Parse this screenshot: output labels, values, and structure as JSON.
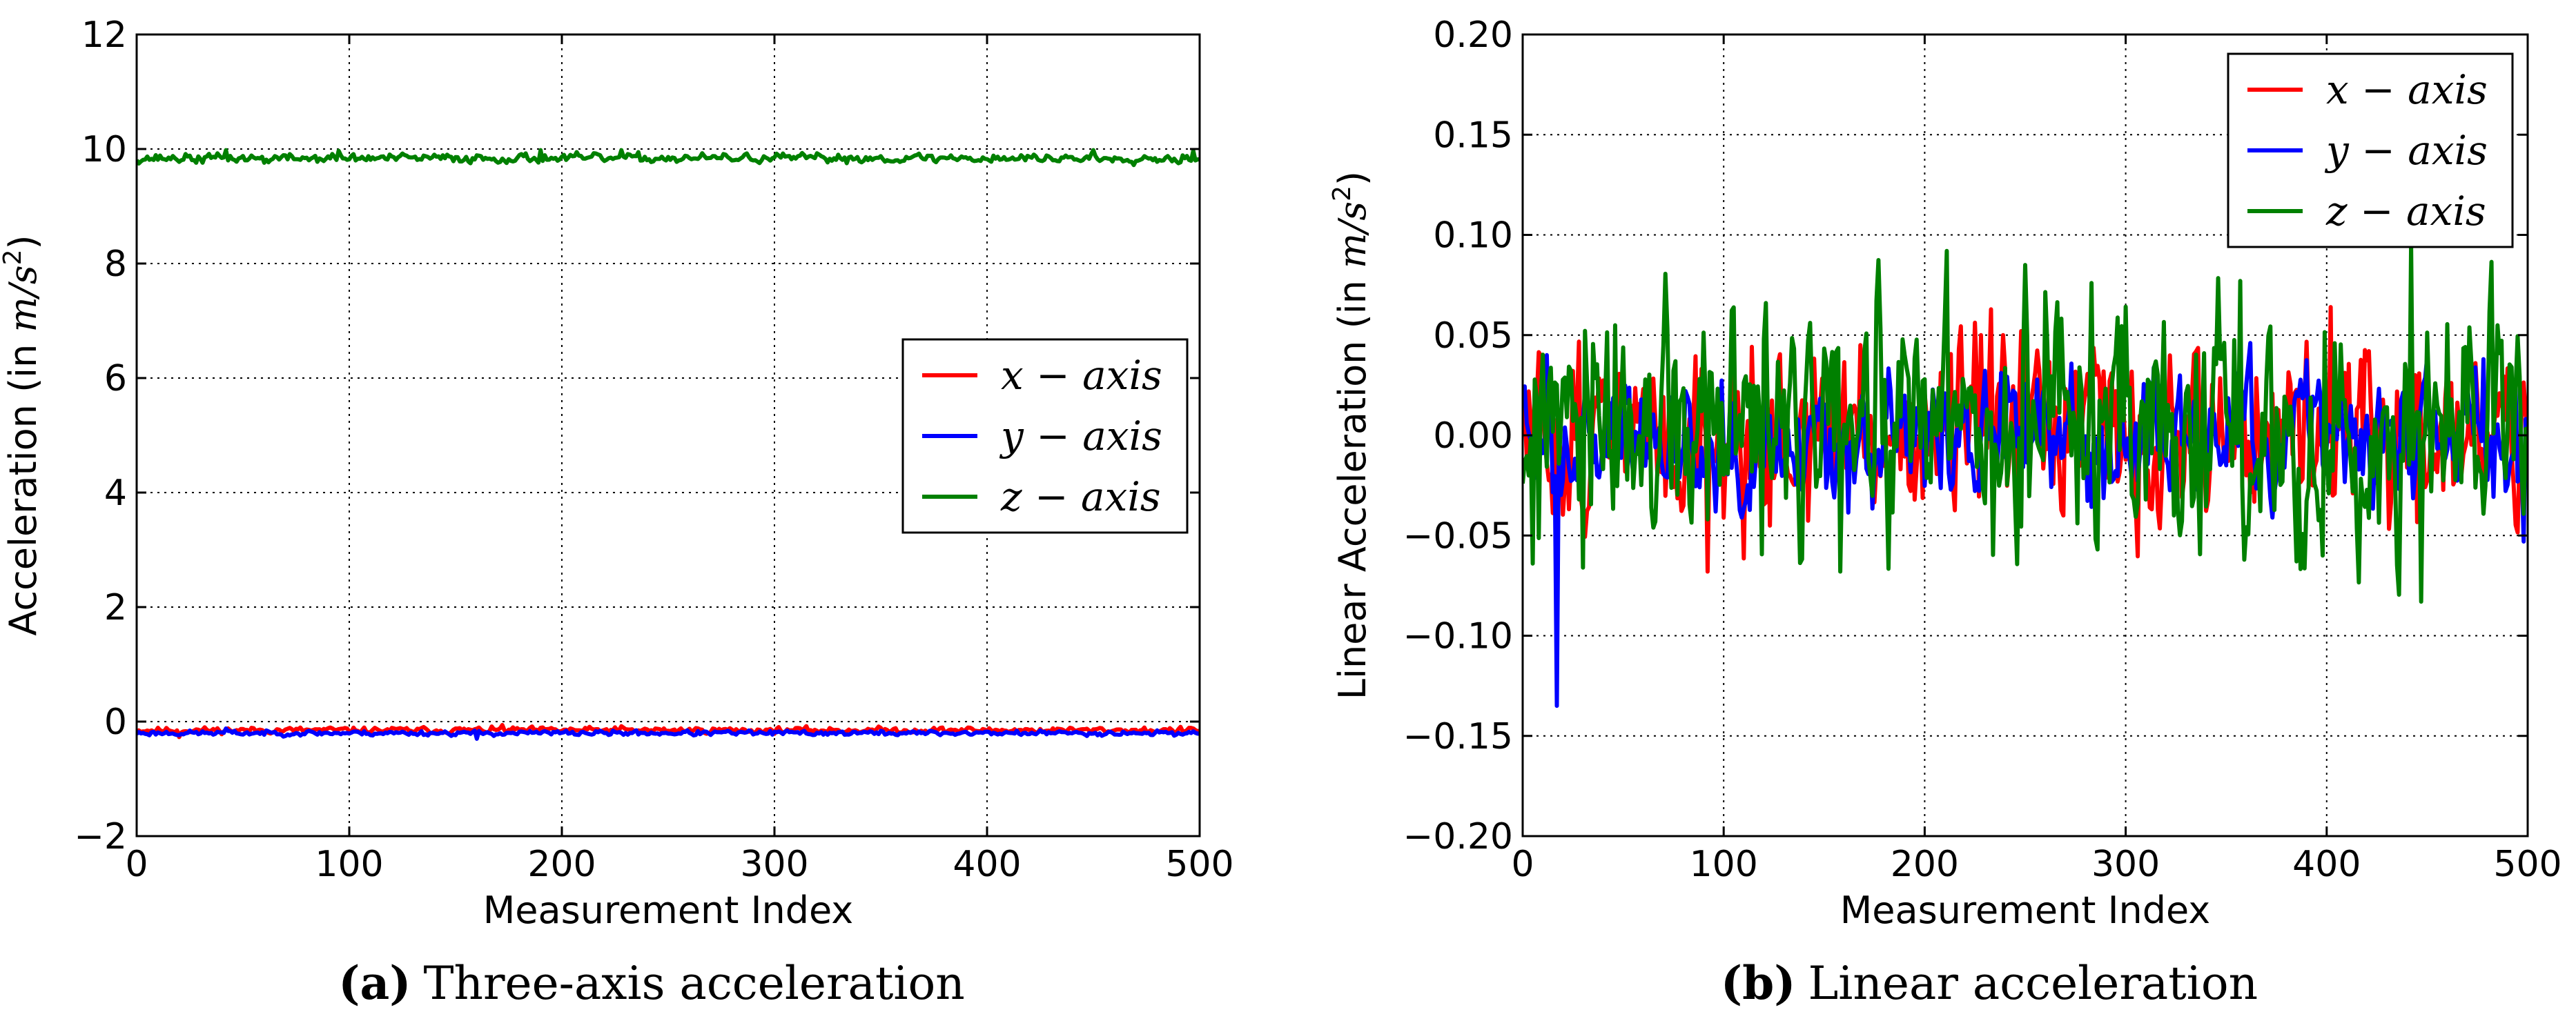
{
  "figure": {
    "caption_a_tag": "(a)",
    "caption_a_text": "Three-axis acceleration",
    "caption_b_tag": "(b)",
    "caption_b_text": "Linear acceleration"
  },
  "chart_data": [
    {
      "id": "a",
      "type": "line",
      "title": "",
      "xlabel": "Measurement Index",
      "ylabel_prefix": "Acceleration (in ",
      "ylabel_unit": "m/s",
      "ylabel_exp": "2",
      "ylabel_suffix": ")",
      "xlim": [
        0,
        500
      ],
      "ylim": [
        -2,
        12
      ],
      "xticks": [
        0,
        100,
        200,
        300,
        400,
        500
      ],
      "xtick_labels": [
        "0",
        "100",
        "200",
        "300",
        "400",
        "500"
      ],
      "yticks": [
        -2,
        0,
        2,
        4,
        6,
        8,
        10,
        12
      ],
      "ytick_labels": [
        "−2",
        "0",
        "2",
        "4",
        "6",
        "8",
        "10",
        "12"
      ],
      "grid": true,
      "legend_position": "center-right",
      "series": [
        {
          "name": "x − axis",
          "color": "#ff0000",
          "base": -0.15,
          "noise": 0.03,
          "seed": 11,
          "spikes": [
            [
              20,
              -0.27
            ],
            [
              172,
              -0.06
            ],
            [
              228,
              -0.08
            ]
          ]
        },
        {
          "name": "y − axis",
          "color": "#0000ff",
          "base": -0.2,
          "noise": 0.025,
          "seed": 23,
          "spikes": [
            [
              160,
              -0.3
            ],
            [
              42,
              -0.12
            ]
          ]
        },
        {
          "name": "z − axis",
          "color": "#008000",
          "base": 9.84,
          "noise": 0.045,
          "seed": 37,
          "spikes": [
            [
              42,
              9.98
            ],
            [
              95,
              9.97
            ],
            [
              190,
              9.98
            ],
            [
              228,
              9.98
            ],
            [
              450,
              9.98
            ],
            [
              497,
              9.97
            ],
            [
              28,
              9.76
            ],
            [
              60,
              9.76
            ]
          ]
        }
      ]
    },
    {
      "id": "b",
      "type": "line",
      "title": "",
      "xlabel": "Measurement Index",
      "ylabel_prefix": "Linear Acceleration (in ",
      "ylabel_unit": "m/s",
      "ylabel_exp": "2",
      "ylabel_suffix": ")",
      "xlim": [
        0,
        500
      ],
      "ylim": [
        -0.2,
        0.2
      ],
      "xticks": [
        0,
        100,
        200,
        300,
        400,
        500
      ],
      "xtick_labels": [
        "0",
        "100",
        "200",
        "300",
        "400",
        "500"
      ],
      "yticks": [
        -0.2,
        -0.15,
        -0.1,
        -0.05,
        0,
        0.05,
        0.1,
        0.15,
        0.2
      ],
      "ytick_labels": [
        "−0.20",
        "−0.15",
        "−0.10",
        "−0.05",
        "0.00",
        "0.05",
        "0.10",
        "0.15",
        "0.20"
      ],
      "grid": true,
      "legend_position": "upper-right",
      "series": [
        {
          "name": "x − axis",
          "color": "#ff0000",
          "base": 0.0,
          "noise": 0.026,
          "seed": 51,
          "spikes": [
            [
              92,
              -0.068
            ],
            [
              248,
              0.052
            ],
            [
              402,
              0.064
            ],
            [
              228,
              0.05
            ],
            [
              168,
              0.045
            ]
          ]
        },
        {
          "name": "y − axis",
          "color": "#0000ff",
          "base": 0.0,
          "noise": 0.018,
          "seed": 63,
          "spikes": [
            [
              17,
              -0.135
            ],
            [
              12,
              0.04
            ],
            [
              498,
              -0.053
            ],
            [
              478,
              0.038
            ]
          ]
        },
        {
          "name": "z − axis",
          "color": "#008000",
          "base": 0.0,
          "noise": 0.035,
          "seed": 77,
          "spikes": [
            [
              211,
              0.092
            ],
            [
              442,
              0.095
            ],
            [
              447,
              -0.083
            ],
            [
              250,
              0.085
            ],
            [
              121,
              0.066
            ],
            [
              158,
              -0.068
            ],
            [
              283,
              0.076
            ],
            [
              357,
              0.077
            ],
            [
              398,
              -0.06
            ],
            [
              5,
              -0.064
            ],
            [
              30,
              -0.066
            ]
          ]
        }
      ]
    }
  ]
}
